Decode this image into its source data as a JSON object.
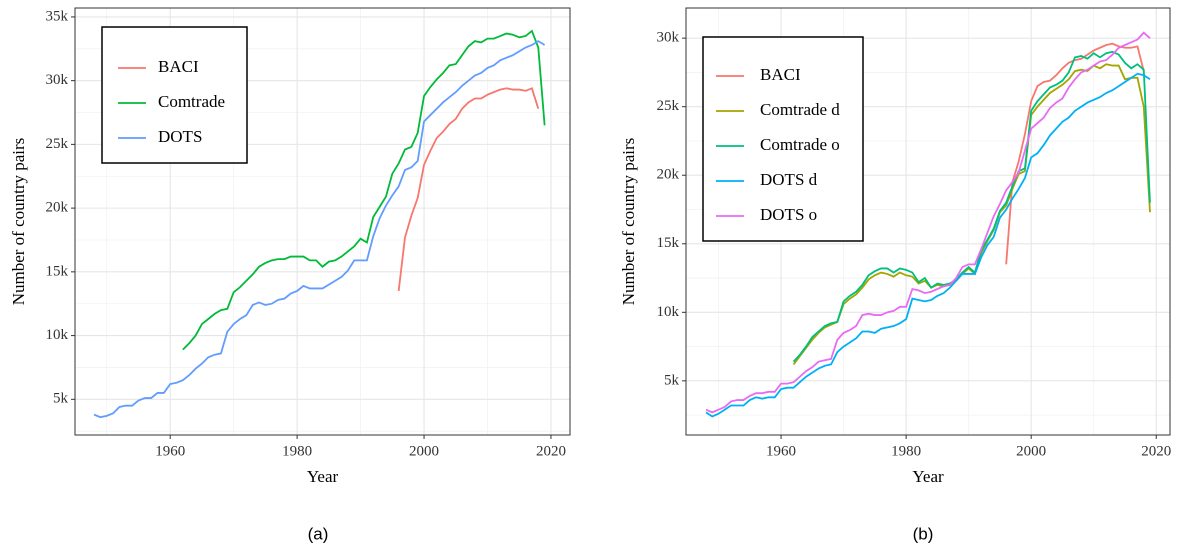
{
  "chart_data": [
    {
      "type": "line",
      "caption": "(a)",
      "xlabel": "Year",
      "ylabel": "Number of country pairs",
      "grid": true,
      "legend": "upper left",
      "xlim": [
        1945,
        2023
      ],
      "xticks": [
        1960,
        1980,
        2000,
        2020
      ],
      "ylim": [
        2200,
        35700
      ],
      "yticks": [
        {
          "value": 5000,
          "label": "5k"
        },
        {
          "value": 10000,
          "label": "10k"
        },
        {
          "value": 15000,
          "label": "15k"
        },
        {
          "value": 20000,
          "label": "20k"
        },
        {
          "value": 25000,
          "label": "25k"
        },
        {
          "value": 30000,
          "label": "30k"
        },
        {
          "value": 35000,
          "label": "35k"
        }
      ],
      "x": [
        1948,
        1949,
        1950,
        1951,
        1952,
        1953,
        1954,
        1955,
        1956,
        1957,
        1958,
        1959,
        1960,
        1961,
        1962,
        1963,
        1964,
        1965,
        1966,
        1967,
        1968,
        1969,
        1970,
        1971,
        1972,
        1973,
        1974,
        1975,
        1976,
        1977,
        1978,
        1979,
        1980,
        1981,
        1982,
        1983,
        1984,
        1985,
        1986,
        1987,
        1988,
        1989,
        1990,
        1991,
        1992,
        1993,
        1994,
        1995,
        1996,
        1997,
        1998,
        1999,
        2000,
        2001,
        2002,
        2003,
        2004,
        2005,
        2006,
        2007,
        2008,
        2009,
        2010,
        2011,
        2012,
        2013,
        2014,
        2015,
        2016,
        2017,
        2018,
        2019
      ],
      "series": [
        {
          "name": "BACI",
          "color": "#F8766D",
          "values": [
            null,
            null,
            null,
            null,
            null,
            null,
            null,
            null,
            null,
            null,
            null,
            null,
            null,
            null,
            null,
            null,
            null,
            null,
            null,
            null,
            null,
            null,
            null,
            null,
            null,
            null,
            null,
            null,
            null,
            null,
            null,
            null,
            null,
            null,
            null,
            null,
            null,
            null,
            null,
            null,
            null,
            null,
            null,
            null,
            null,
            null,
            null,
            null,
            13500,
            17700,
            19400,
            20800,
            23400,
            24500,
            25500,
            26000,
            26600,
            27000,
            27800,
            28300,
            28600,
            28600,
            28900,
            29100,
            29300,
            29400,
            29300,
            29300,
            29200,
            29400,
            27800,
            null
          ]
        },
        {
          "name": "Comtrade",
          "color": "#00BA38",
          "values": [
            null,
            null,
            null,
            null,
            null,
            null,
            null,
            null,
            null,
            null,
            null,
            null,
            null,
            null,
            8900,
            9400,
            10000,
            10900,
            11300,
            11700,
            12000,
            12100,
            13400,
            13800,
            14300,
            14800,
            15400,
            15700,
            15900,
            16000,
            16000,
            16200,
            16200,
            16200,
            15900,
            15900,
            15400,
            15800,
            15900,
            16200,
            16600,
            17000,
            17600,
            17300,
            19300,
            20100,
            20900,
            22700,
            23500,
            24600,
            24800,
            25900,
            28800,
            29500,
            30100,
            30600,
            31200,
            31300,
            32000,
            32700,
            33100,
            33000,
            33300,
            33300,
            33500,
            33700,
            33600,
            33400,
            33500,
            33900,
            32600,
            26500
          ]
        },
        {
          "name": "DOTS",
          "color": "#619CFF",
          "values": [
            3800,
            3600,
            3700,
            3900,
            4400,
            4500,
            4500,
            4900,
            5100,
            5100,
            5500,
            5500,
            6200,
            6300,
            6500,
            6900,
            7400,
            7800,
            8300,
            8500,
            8600,
            10300,
            10900,
            11300,
            11600,
            12400,
            12600,
            12400,
            12500,
            12800,
            12900,
            13300,
            13500,
            13900,
            13700,
            13700,
            13700,
            14000,
            14300,
            14600,
            15100,
            15900,
            15900,
            15900,
            17800,
            19200,
            20200,
            21000,
            21700,
            23000,
            23200,
            23700,
            26800,
            27300,
            27800,
            28300,
            28700,
            29100,
            29600,
            30000,
            30400,
            30600,
            31000,
            31200,
            31600,
            31800,
            32000,
            32300,
            32600,
            32800,
            33100,
            32800
          ]
        }
      ]
    },
    {
      "type": "line",
      "caption": "(b)",
      "xlabel": "Year",
      "ylabel": "Number of country pairs",
      "grid": true,
      "legend": "upper left",
      "xlim": [
        1944.8,
        2022.2
      ],
      "xticks": [
        1960,
        1980,
        2000,
        2020
      ],
      "ylim": [
        1050,
        32200
      ],
      "yticks": [
        {
          "value": 5000,
          "label": "5k"
        },
        {
          "value": 10000,
          "label": "10k"
        },
        {
          "value": 15000,
          "label": "15k"
        },
        {
          "value": 20000,
          "label": "20k"
        },
        {
          "value": 25000,
          "label": "25k"
        },
        {
          "value": 30000,
          "label": "30k"
        }
      ],
      "x": [
        1948,
        1949,
        1950,
        1951,
        1952,
        1953,
        1954,
        1955,
        1956,
        1957,
        1958,
        1959,
        1960,
        1961,
        1962,
        1963,
        1964,
        1965,
        1966,
        1967,
        1968,
        1969,
        1970,
        1971,
        1972,
        1973,
        1974,
        1975,
        1976,
        1977,
        1978,
        1979,
        1980,
        1981,
        1982,
        1983,
        1984,
        1985,
        1986,
        1987,
        1988,
        1989,
        1990,
        1991,
        1992,
        1993,
        1994,
        1995,
        1996,
        1997,
        1998,
        1999,
        2000,
        2001,
        2002,
        2003,
        2004,
        2005,
        2006,
        2007,
        2008,
        2009,
        2010,
        2011,
        2012,
        2013,
        2014,
        2015,
        2016,
        2017,
        2018,
        2019
      ],
      "series": [
        {
          "name": "BACI",
          "color": "#F8766D",
          "values": [
            null,
            null,
            null,
            null,
            null,
            null,
            null,
            null,
            null,
            null,
            null,
            null,
            null,
            null,
            null,
            null,
            null,
            null,
            null,
            null,
            null,
            null,
            null,
            null,
            null,
            null,
            null,
            null,
            null,
            null,
            null,
            null,
            null,
            null,
            null,
            null,
            null,
            null,
            null,
            null,
            null,
            null,
            null,
            null,
            null,
            null,
            null,
            null,
            13500,
            19500,
            21000,
            23000,
            25400,
            26500,
            26800,
            26900,
            27300,
            27800,
            28200,
            28400,
            28500,
            28800,
            29100,
            29300,
            29500,
            29600,
            29400,
            29300,
            29300,
            29400,
            27600,
            null
          ]
        },
        {
          "name": "Comtrade d",
          "color": "#A3A500",
          "values": [
            null,
            null,
            null,
            null,
            null,
            null,
            null,
            null,
            null,
            null,
            null,
            null,
            null,
            null,
            6200,
            6800,
            7400,
            8000,
            8500,
            8900,
            9100,
            9300,
            10600,
            11000,
            11300,
            11800,
            12400,
            12700,
            12900,
            12800,
            12600,
            12900,
            12700,
            12600,
            12100,
            12300,
            11800,
            12000,
            11900,
            12000,
            12300,
            12800,
            13200,
            12800,
            14300,
            15200,
            16000,
            17300,
            17800,
            19000,
            20100,
            20300,
            24400,
            25000,
            25500,
            26000,
            26300,
            26600,
            27000,
            27600,
            27700,
            27600,
            28000,
            27800,
            28100,
            28000,
            28000,
            27000,
            27100,
            27100,
            25000,
            17300
          ]
        },
        {
          "name": "Comtrade o",
          "color": "#00BF7D",
          "values": [
            null,
            null,
            null,
            null,
            null,
            null,
            null,
            null,
            null,
            null,
            null,
            null,
            null,
            null,
            6400,
            6900,
            7500,
            8200,
            8600,
            9000,
            9200,
            9300,
            10800,
            11200,
            11500,
            12000,
            12700,
            13000,
            13200,
            13200,
            12900,
            13200,
            13100,
            12900,
            12200,
            12500,
            11800,
            12100,
            12000,
            12100,
            12400,
            12900,
            13300,
            12900,
            14500,
            15300,
            16100,
            17400,
            18000,
            19200,
            20300,
            20500,
            24700,
            25400,
            25900,
            26400,
            26600,
            26900,
            27500,
            28600,
            28700,
            28500,
            28900,
            28600,
            28900,
            29000,
            28800,
            28200,
            27800,
            28100,
            27700,
            18000
          ]
        },
        {
          "name": "DOTS d",
          "color": "#00B0F6",
          "values": [
            2700,
            2400,
            2600,
            2900,
            3200,
            3200,
            3200,
            3600,
            3800,
            3700,
            3800,
            3800,
            4400,
            4500,
            4500,
            4900,
            5300,
            5600,
            5900,
            6100,
            6200,
            7100,
            7500,
            7800,
            8100,
            8600,
            8600,
            8500,
            8800,
            8900,
            9000,
            9200,
            9500,
            11000,
            10900,
            10800,
            10900,
            11200,
            11400,
            11800,
            12300,
            12800,
            12800,
            12800,
            14000,
            14900,
            15500,
            16900,
            17500,
            18300,
            19000,
            19800,
            21300,
            21600,
            22200,
            22900,
            23400,
            23900,
            24200,
            24700,
            25000,
            25300,
            25500,
            25700,
            26000,
            26200,
            26500,
            26800,
            27100,
            27400,
            27300,
            27000
          ]
        },
        {
          "name": "DOTS o",
          "color": "#E76BF3",
          "values": [
            2900,
            2700,
            2900,
            3100,
            3500,
            3600,
            3600,
            3900,
            4100,
            4100,
            4200,
            4200,
            4800,
            4800,
            4900,
            5300,
            5700,
            6000,
            6400,
            6500,
            6600,
            8000,
            8500,
            8700,
            9000,
            9800,
            9900,
            9800,
            9800,
            10000,
            10100,
            10400,
            10400,
            11700,
            11600,
            11400,
            11500,
            11700,
            11900,
            12000,
            12500,
            13300,
            13500,
            13500,
            14600,
            15800,
            17000,
            17900,
            18900,
            19500,
            20200,
            21800,
            23400,
            23800,
            24200,
            24900,
            25300,
            25600,
            26400,
            27000,
            27500,
            27700,
            28000,
            28300,
            28400,
            28800,
            29300,
            29500,
            29700,
            29900,
            30400,
            30000
          ]
        }
      ]
    }
  ]
}
